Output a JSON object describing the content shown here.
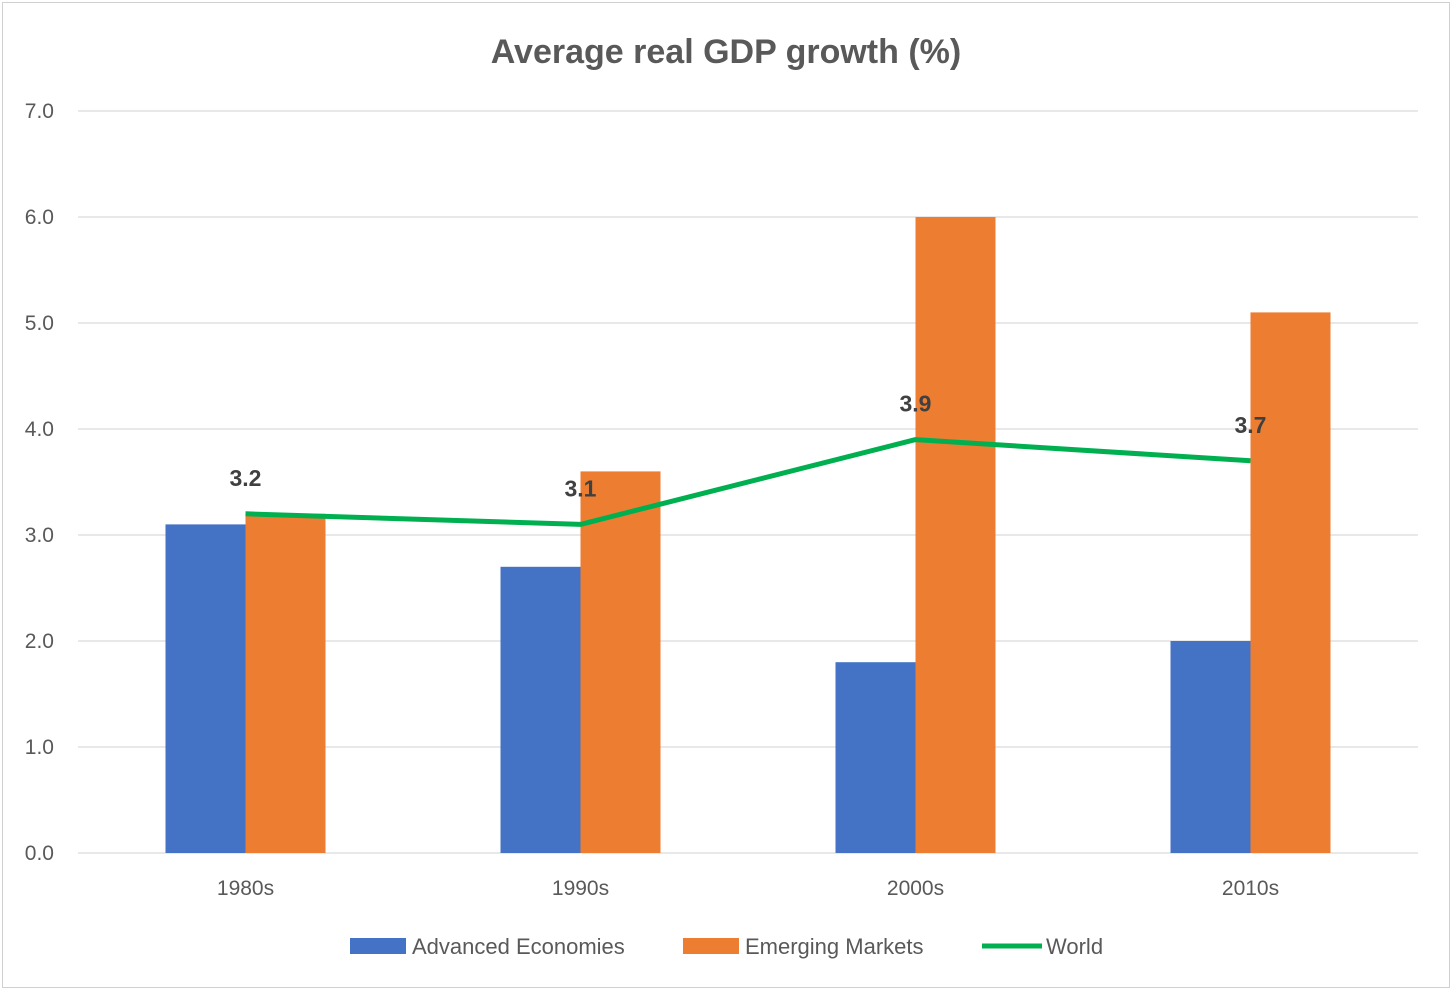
{
  "chart_data": {
    "type": "bar",
    "title": "Average real GDP growth (%)",
    "xlabel": "",
    "ylabel": "",
    "ylim": [
      0,
      7
    ],
    "yticks": [
      "0.0",
      "1.0",
      "2.0",
      "3.0",
      "4.0",
      "5.0",
      "6.0",
      "7.0"
    ],
    "categories": [
      "1980s",
      "1990s",
      "2000s",
      "2010s"
    ],
    "grid": true,
    "legend_position": "bottom",
    "series": [
      {
        "name": "Advanced Economies",
        "type": "bar",
        "color": "#4472C4",
        "values": [
          3.1,
          2.7,
          1.8,
          2.0
        ]
      },
      {
        "name": "Emerging Markets",
        "type": "bar",
        "color": "#ED7D31",
        "values": [
          3.2,
          3.6,
          6.0,
          5.1
        ]
      },
      {
        "name": "World",
        "type": "line",
        "color": "#00B050",
        "values": [
          3.2,
          3.1,
          3.9,
          3.7
        ],
        "labels": [
          "3.2",
          "3.1",
          "3.9",
          "3.7"
        ]
      }
    ]
  }
}
